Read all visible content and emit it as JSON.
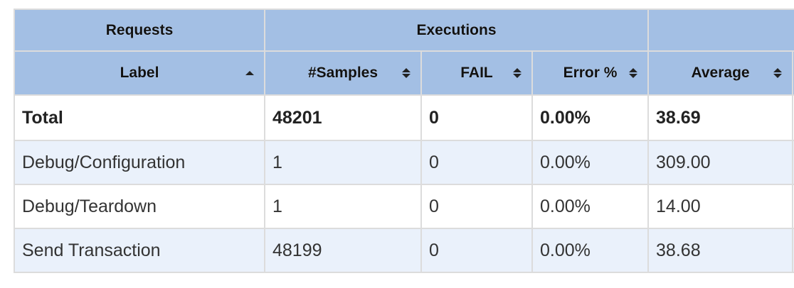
{
  "table": {
    "groups": [
      {
        "label": "Requests"
      },
      {
        "label": "Executions"
      },
      {
        "label": ""
      }
    ],
    "columns": [
      {
        "label": "Label",
        "sort": "ascending"
      },
      {
        "label": "#Samples",
        "sort": "none"
      },
      {
        "label": "FAIL",
        "sort": "none"
      },
      {
        "label": "Error %",
        "sort": "none"
      },
      {
        "label": "Average",
        "sort": "none"
      }
    ],
    "total": {
      "label": "Total",
      "samples": "48201",
      "fail": "0",
      "error": "0.00%",
      "average": "38.69"
    },
    "rows": [
      {
        "label": "Debug/Configuration",
        "samples": "1",
        "fail": "0",
        "error": "0.00%",
        "average": "309.00"
      },
      {
        "label": "Debug/Teardown",
        "samples": "1",
        "fail": "0",
        "error": "0.00%",
        "average": "14.00"
      },
      {
        "label": "Send Transaction",
        "samples": "48199",
        "fail": "0",
        "error": "0.00%",
        "average": "38.68"
      }
    ]
  },
  "colors": {
    "header_bg": "#a3bfe4",
    "odd_row_bg": "#eaf1fb",
    "even_row_bg": "#ffffff",
    "border": "#dcdcdc"
  },
  "icons": {
    "sort_ascending": "sort-ascending-icon",
    "sort_both": "sort-both-icon"
  }
}
